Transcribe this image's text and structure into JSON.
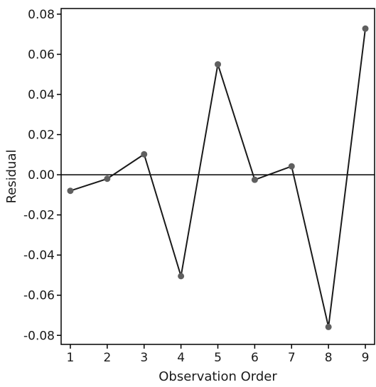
{
  "chart_data": {
    "type": "line",
    "title": "",
    "xlabel": "Observation Order",
    "ylabel": "Residual",
    "x": [
      1,
      2,
      3,
      4,
      5,
      6,
      7,
      8,
      9
    ],
    "series": [
      {
        "values": [
          -0.008,
          -0.002,
          0.0102,
          -0.0505,
          0.055,
          -0.0025,
          0.0042,
          -0.0758,
          0.0728
        ]
      }
    ],
    "xlim": [
      0.75,
      9.25
    ],
    "ylim": [
      -0.0845,
      0.0828
    ],
    "xticks": [
      1,
      2,
      3,
      4,
      5,
      6,
      7,
      8,
      9
    ],
    "yticks": [
      0.08,
      0.06,
      0.04,
      0.02,
      0.0,
      -0.02,
      -0.04,
      -0.06,
      -0.08
    ],
    "ytick_labels": [
      "0.08",
      "0.06",
      "0.04",
      "0.02",
      "0.00",
      "-0.02",
      "-0.04",
      "-0.06",
      "-0.08"
    ],
    "reference_line": 0,
    "grid": false,
    "colors": {
      "line": "#1a1a1a",
      "marker": "#5f5f5f",
      "axis": "#000000"
    }
  }
}
